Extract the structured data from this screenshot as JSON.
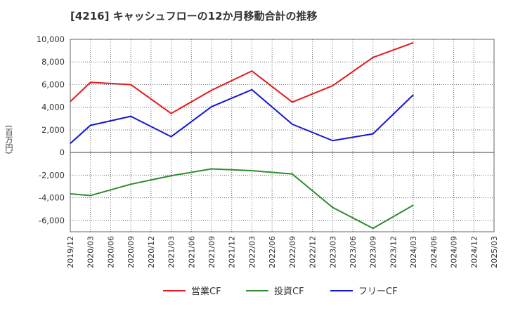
{
  "chart_data": {
    "type": "line",
    "title": "[4216]  キャッシュフローの12か月移動合計の推移",
    "ylabel": "(百万円)",
    "xlabel": "",
    "x": [
      "2019/12",
      "2020/03",
      "2020/06",
      "2020/09",
      "2020/12",
      "2021/03",
      "2021/06",
      "2021/09",
      "2021/12",
      "2022/03",
      "2022/06",
      "2022/09",
      "2022/12",
      "2023/03",
      "2023/06",
      "2023/09",
      "2023/12",
      "2024/03",
      "2024/06",
      "2024/09",
      "2024/12",
      "2025/03"
    ],
    "ylim": [
      -7000,
      10000
    ],
    "yticks": [
      10000,
      8000,
      6000,
      4000,
      2000,
      0,
      -2000,
      -4000,
      -6000
    ],
    "ytick_labels": [
      "10,000",
      "8,000",
      "6,000",
      "4,000",
      "2,000",
      "0",
      "-2,000",
      "-4,000",
      "-6,000"
    ],
    "grid": true,
    "legend_position": "bottom",
    "series": [
      {
        "name": "営業CF",
        "color": "#e31a1c",
        "points": [
          [
            "2019/12",
            4500
          ],
          [
            "2020/03",
            6200
          ],
          [
            "2020/09",
            6000
          ],
          [
            "2021/03",
            3450
          ],
          [
            "2021/09",
            5500
          ],
          [
            "2022/03",
            7200
          ],
          [
            "2022/09",
            4450
          ],
          [
            "2023/03",
            5900
          ],
          [
            "2023/09",
            8400
          ],
          [
            "2024/03",
            9700
          ]
        ]
      },
      {
        "name": "投資CF",
        "color": "#2e8b2e",
        "points": [
          [
            "2019/12",
            -3650
          ],
          [
            "2020/03",
            -3800
          ],
          [
            "2020/09",
            -2800
          ],
          [
            "2021/03",
            -2050
          ],
          [
            "2021/09",
            -1450
          ],
          [
            "2022/03",
            -1600
          ],
          [
            "2022/09",
            -1900
          ],
          [
            "2023/03",
            -4850
          ],
          [
            "2023/09",
            -6700
          ],
          [
            "2024/03",
            -4650
          ]
        ]
      },
      {
        "name": "フリーCF",
        "color": "#1414d4",
        "points": [
          [
            "2019/12",
            800
          ],
          [
            "2020/03",
            2400
          ],
          [
            "2020/09",
            3200
          ],
          [
            "2021/03",
            1400
          ],
          [
            "2021/09",
            4050
          ],
          [
            "2022/03",
            5550
          ],
          [
            "2022/09",
            2500
          ],
          [
            "2023/03",
            1050
          ],
          [
            "2023/09",
            1650
          ],
          [
            "2024/03",
            5100
          ]
        ]
      }
    ]
  }
}
